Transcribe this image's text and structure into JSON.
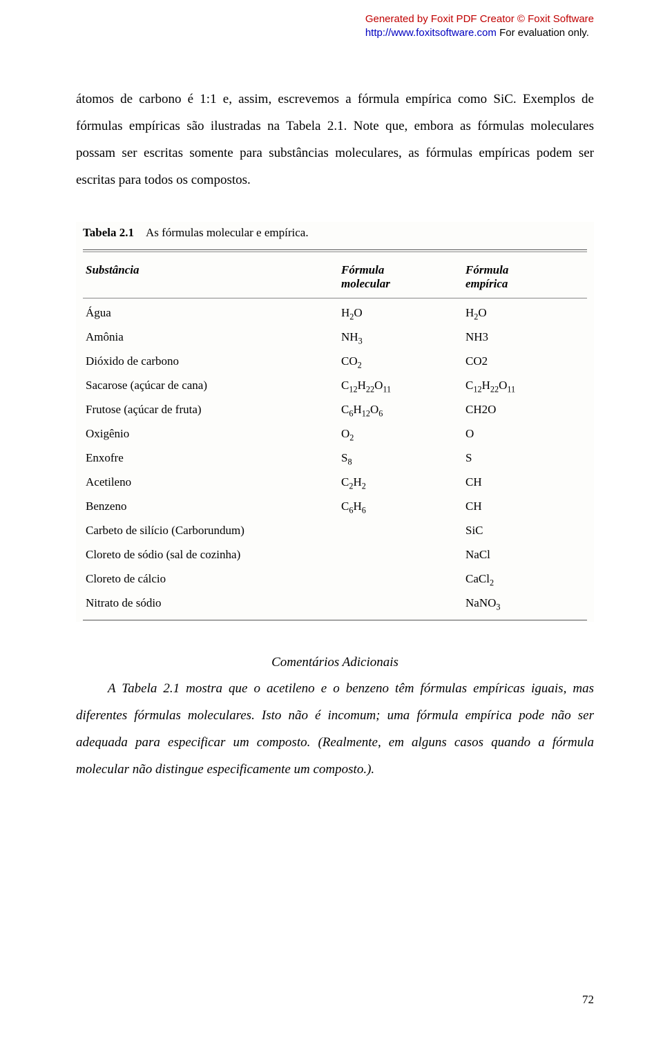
{
  "watermark": {
    "line1": "Generated by Foxit PDF Creator © Foxit Software",
    "line2_a": "http://www.foxitsoftware.com",
    "line2_b": "   For evaluation only."
  },
  "paragraph1": "átomos de carbono é 1:1 e, assim, escrevemos a fórmula empírica como SiC. Exemplos de fórmulas empíricas são ilustradas na Tabela 2.1. Note que, embora as fórmulas moleculares possam ser escritas somente para substâncias moleculares, as fórmulas empíricas podem ser escritas para todos os compostos.",
  "table": {
    "title_bold": "Tabela 2.1",
    "title_rest": "As fórmulas molecular e empírica.",
    "head": {
      "a": "Substância",
      "b": "Fórmula molecular",
      "c": "Fórmula empírica"
    },
    "rows": [
      {
        "a": "Água",
        "b": "H<sub>2</sub>O",
        "c": "H<sub>2</sub>O"
      },
      {
        "a": "Amônia",
        "b": "NH<sub>3</sub>",
        "c": "NH3"
      },
      {
        "a": "Dióxido de carbono",
        "b": "CO<sub>2</sub>",
        "c": "CO2"
      },
      {
        "a": "Sacarose (açúcar de cana)",
        "b": "C<sub>12</sub>H<sub>22</sub>O<sub>11</sub>",
        "c": "C<sub>12</sub>H<sub>22</sub>O<sub>11</sub>"
      },
      {
        "a": "Frutose (açúcar de fruta)",
        "b": "C<sub>6</sub>H<sub>12</sub>O<sub>6</sub>",
        "c": "CH2O"
      },
      {
        "a": "Oxigênio",
        "b": "O<sub>2</sub>",
        "c": "O"
      },
      {
        "a": "Enxofre",
        "b": "S<sub>8</sub>",
        "c": "S"
      },
      {
        "a": "Acetileno",
        "b": "C<sub>2</sub>H<sub>2</sub>",
        "c": "CH"
      },
      {
        "a": "Benzeno",
        "b": "C<sub>6</sub>H<sub>6</sub>",
        "c": "CH"
      },
      {
        "a": "Carbeto de silício (Carborundum)",
        "b": "",
        "c": "SiC"
      },
      {
        "a": "Cloreto de sódio (sal de cozinha)",
        "b": "",
        "c": "NaCl"
      },
      {
        "a": "Cloreto de cálcio",
        "b": "",
        "c": "CaCl<sub>2</sub>"
      },
      {
        "a": "Nitrato de sódio",
        "b": "",
        "c": "NaNO<sub>3</sub>"
      }
    ]
  },
  "comments_heading": "Comentários Adicionais",
  "paragraph2": "A Tabela 2.1 mostra que o acetileno e o benzeno têm fórmulas empíricas iguais, mas diferentes fórmulas moleculares. Isto não é incomum; uma fórmula empírica pode não ser adequada para especificar um composto. (Realmente, em alguns casos quando a fórmula molecular não distingue especificamente um composto.).",
  "page_number": "72"
}
